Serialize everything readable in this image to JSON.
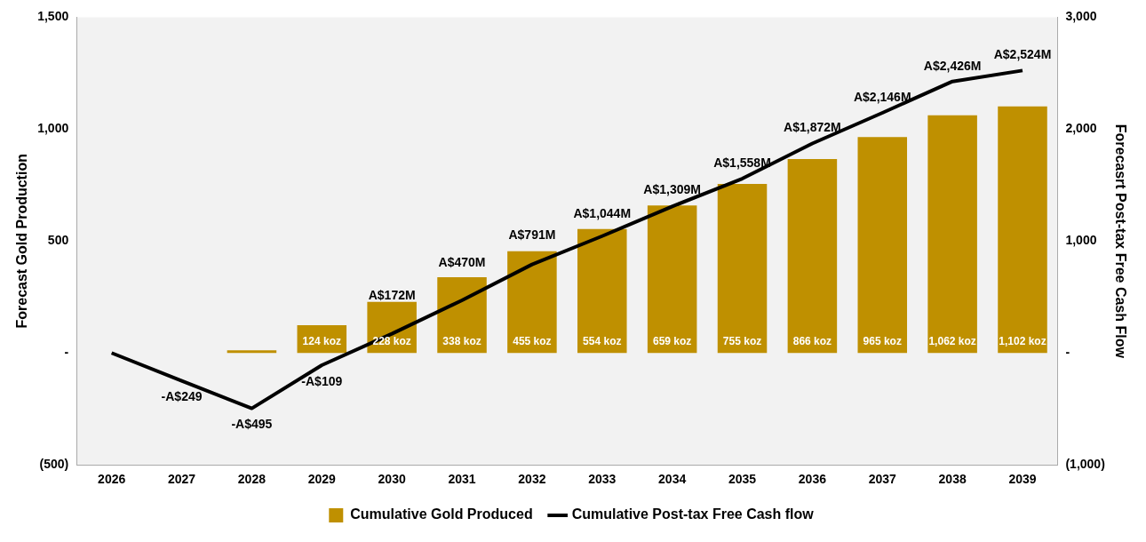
{
  "chart_data": {
    "type": "bar",
    "categories": [
      "2026",
      "2027",
      "2028",
      "2029",
      "2030",
      "2031",
      "2032",
      "2033",
      "2034",
      "2035",
      "2036",
      "2037",
      "2038",
      "2039"
    ],
    "ylabel": "Forecast Gold Production",
    "y2label": "Forecasrt Post-tax Free Cash Flow",
    "ylim": [
      -500,
      1500
    ],
    "yticks": [
      {
        "value": -500,
        "label": "(500)"
      },
      {
        "value": 0,
        "label": "-"
      },
      {
        "value": 500,
        "label": "500"
      },
      {
        "value": 1000,
        "label": "1,000"
      },
      {
        "value": 1500,
        "label": "1,500"
      }
    ],
    "y2lim": [
      -1000,
      3000
    ],
    "y2ticks": [
      {
        "value": -1000,
        "label": "(1,000)"
      },
      {
        "value": 0,
        "label": "-"
      },
      {
        "value": 1000,
        "label": "1,000"
      },
      {
        "value": 2000,
        "label": "2,000"
      },
      {
        "value": 3000,
        "label": "3,000"
      }
    ],
    "series": [
      {
        "name": "Cumulative Gold Produced",
        "color": "#bf9000",
        "values": [
          0,
          0,
          12,
          124,
          228,
          338,
          455,
          554,
          659,
          755,
          866,
          965,
          1062,
          1102
        ],
        "value_labels": [
          null,
          null,
          null,
          "124 koz",
          "228 koz",
          "338 koz",
          "455 koz",
          "554 koz",
          "659 koz",
          "755 koz",
          "866 koz",
          "965 koz",
          "1,062 koz",
          "1,102 koz"
        ]
      },
      {
        "name": "Cumulative Post-tax Free Cash flow",
        "type": "line",
        "axis": "y2",
        "color": "#000000",
        "values": [
          0,
          -249,
          -495,
          -109,
          172,
          470,
          791,
          1044,
          1309,
          1558,
          1872,
          2146,
          2426,
          2524
        ],
        "value_labels": [
          null,
          "-A$249",
          "-A$495",
          "-A$109",
          "A$172M",
          "A$470M",
          "A$791M",
          "A$1,044M",
          "A$1,309M",
          "A$1,558M",
          "A$1,872M",
          "A$2,146M",
          "A$2,426M",
          "A$2,524M"
        ]
      }
    ],
    "legend": "bottom",
    "grid": false,
    "marker": "none",
    "line_style": "solid"
  }
}
